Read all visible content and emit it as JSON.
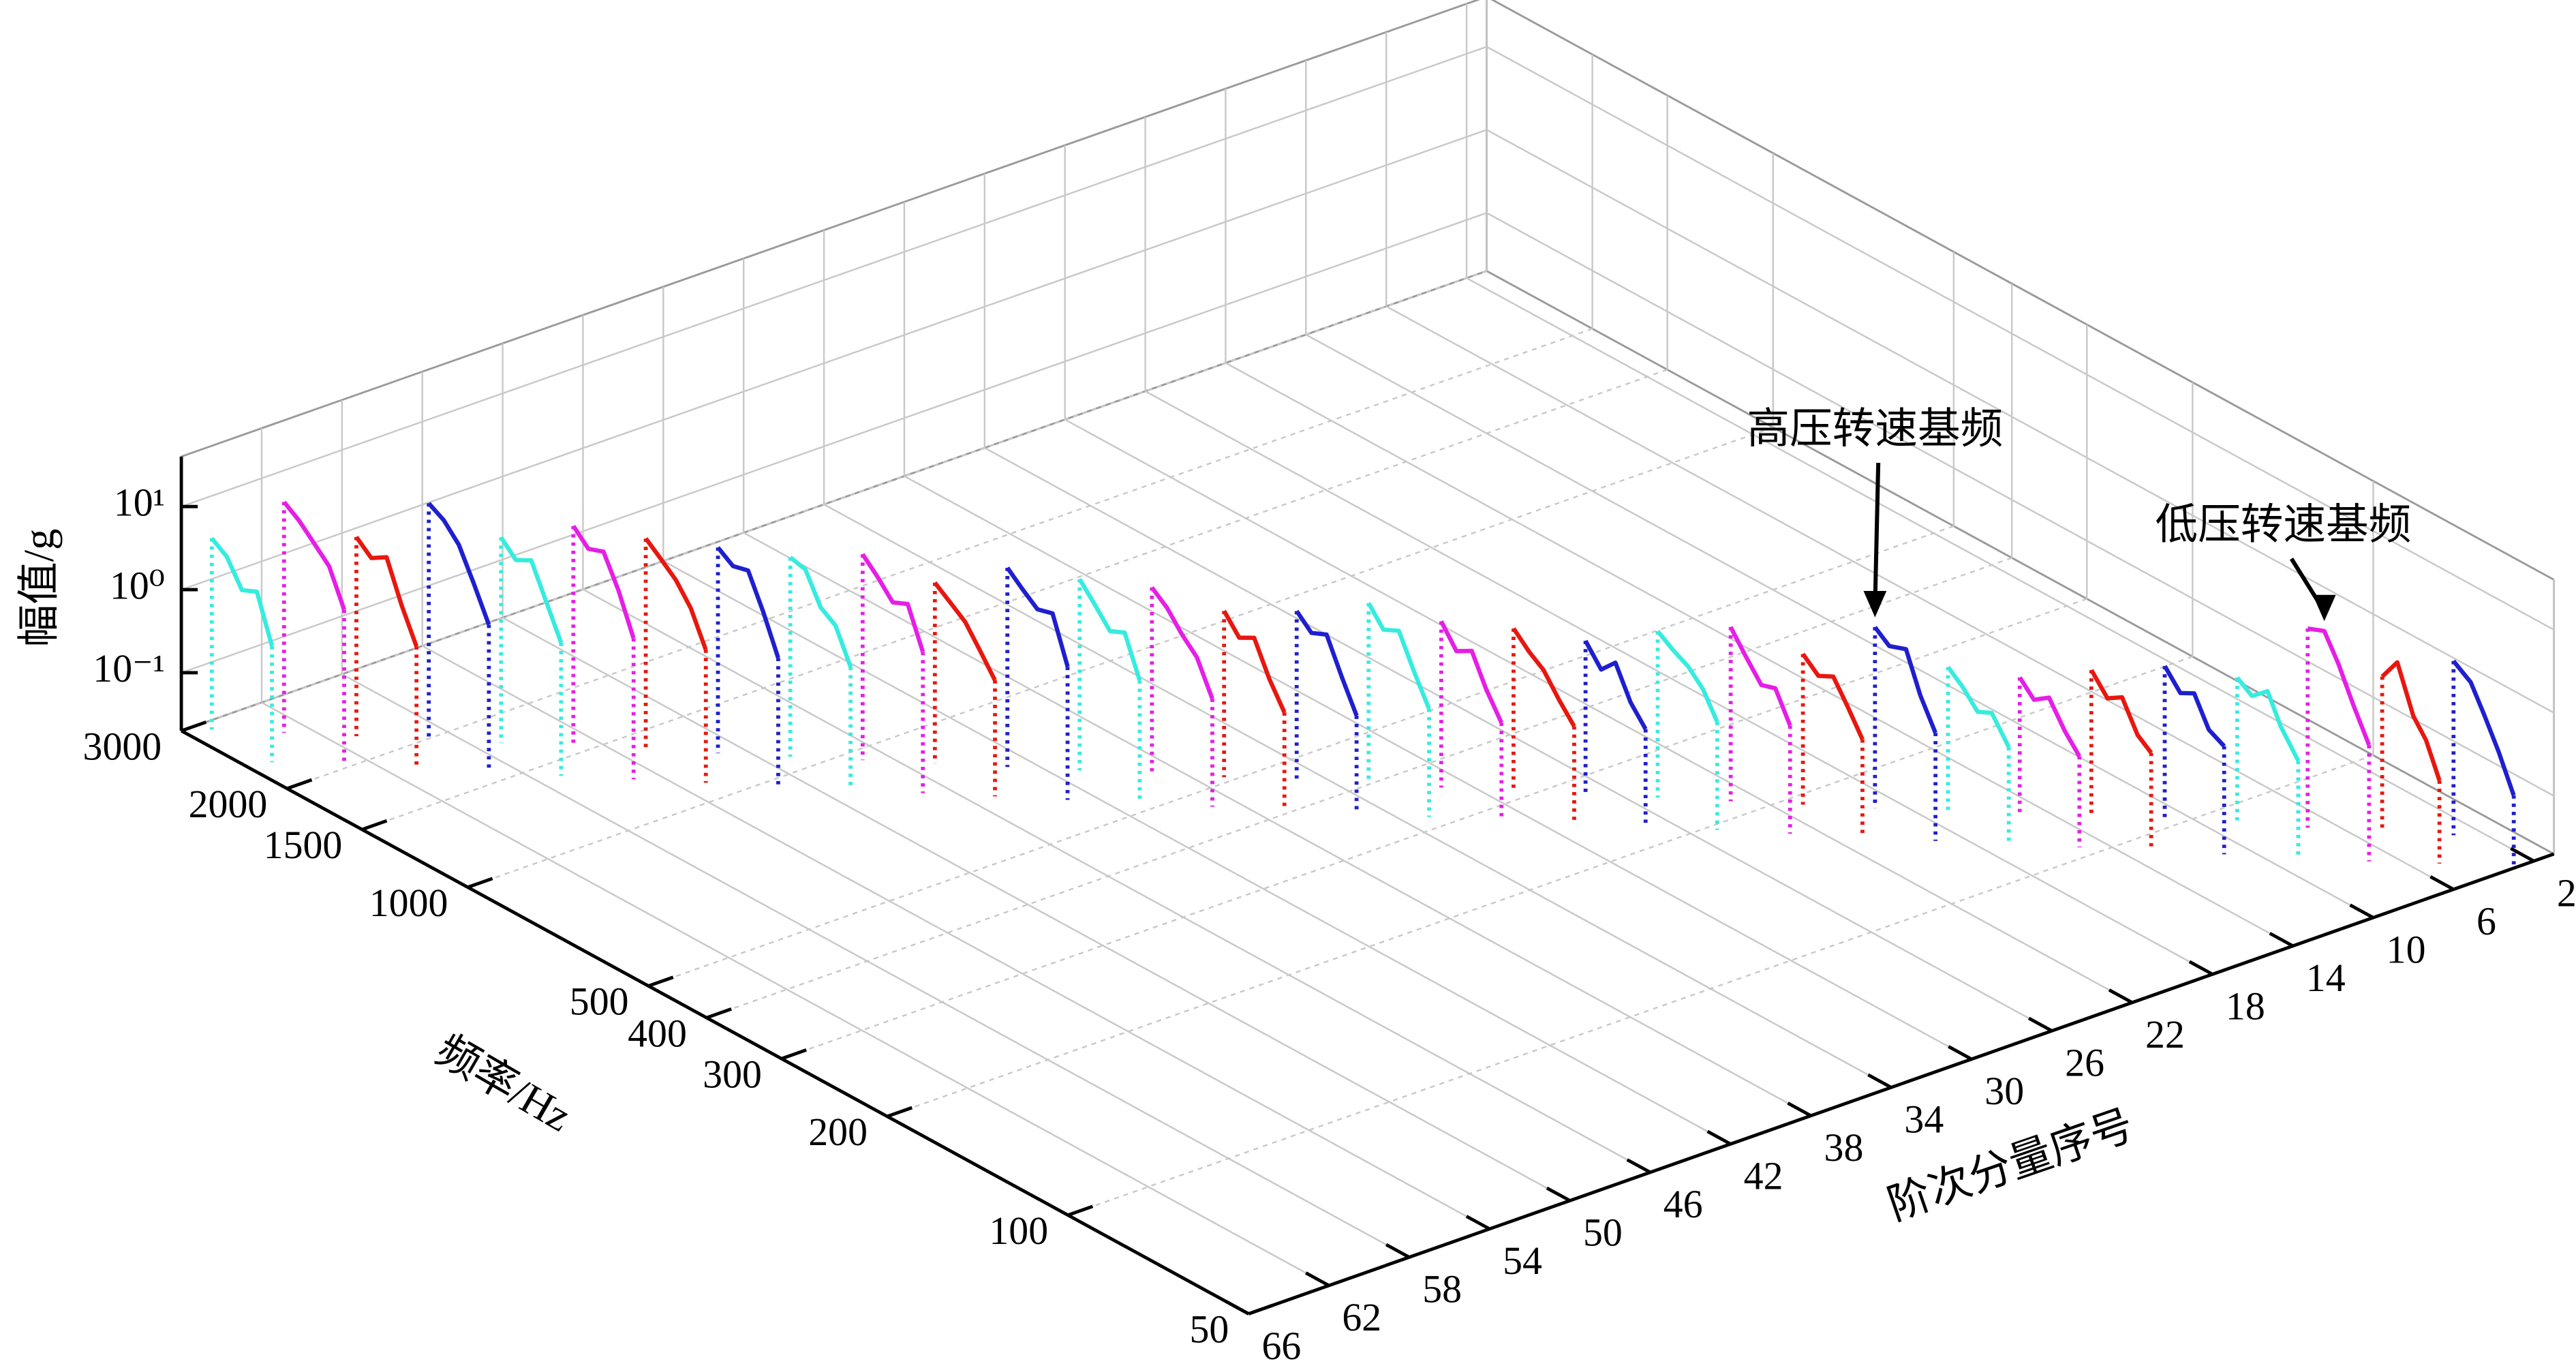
{
  "chart_data": {
    "type": "waterfall3d",
    "x_label": "阶次分量序号",
    "y_label": "频率/Hz",
    "z_label": "幅值/g",
    "xlim": [
      1,
      66
    ],
    "xticks": [
      2,
      6,
      10,
      14,
      18,
      22,
      26,
      30,
      34,
      38,
      42,
      46,
      50,
      54,
      58,
      62,
      66
    ],
    "ylim": [
      50,
      3000
    ],
    "yscale": "log",
    "yticks": [
      50,
      100,
      200,
      300,
      400,
      500,
      1000,
      1500,
      2000,
      3000
    ],
    "zlim": [
      0.02,
      40
    ],
    "zscale": "log",
    "zticks": [
      {
        "value": 0.1,
        "label": "10⁻¹"
      },
      {
        "value": 1,
        "label": "10⁰"
      },
      {
        "value": 10,
        "label": "10¹"
      }
    ],
    "grid": true,
    "annotations": [
      {
        "text": "高压转速基频"
      },
      {
        "text": "低压转速基频"
      }
    ],
    "series": [
      {
        "order": 3,
        "color": "#1f1fcf",
        "x": [
          63,
          59,
          56,
          53,
          50
        ],
        "values": [
          2.5,
          1.8,
          0.9,
          0.4,
          0.15
        ]
      },
      {
        "order": 5,
        "color": "#e8170f",
        "x": [
          71,
          67,
          63,
          60,
          57
        ],
        "values": [
          1.5,
          2.8,
          0.8,
          0.5,
          0.2
        ]
      },
      {
        "order": 7,
        "color": "#e61ee6",
        "x": [
          81,
          76,
          72,
          68,
          64
        ],
        "values": [
          5,
          6,
          3,
          1.2,
          0.5
        ]
      },
      {
        "order": 9,
        "color": "#35ecdf",
        "x": [
          91,
          86,
          81,
          77,
          72
        ],
        "values": [
          1.2,
          0.9,
          1.3,
          0.6,
          0.3
        ]
      },
      {
        "order": 11,
        "color": "#1f1fcf",
        "x": [
          103,
          97,
          92,
          87,
          82
        ],
        "values": [
          1.5,
          0.9,
          1.1,
          0.5,
          0.4
        ]
      },
      {
        "order": 13,
        "color": "#e8170f",
        "x": [
          117,
          110,
          104,
          98,
          93
        ],
        "values": [
          1.2,
          0.7,
          0.9,
          0.4,
          0.3
        ]
      },
      {
        "order": 15,
        "color": "#e61ee6",
        "x": [
          132,
          125,
          118,
          111,
          105
        ],
        "values": [
          0.9,
          0.6,
          0.8,
          0.4,
          0.25
        ]
      },
      {
        "order": 17,
        "color": "#35ecdf",
        "x": [
          149,
          141,
          133,
          126,
          118
        ],
        "values": [
          1.1,
          0.8,
          0.5,
          0.6,
          0.3
        ]
      },
      {
        "order": 19,
        "color": "#1f1fcf",
        "x": [
          169,
          160,
          150,
          142,
          134
        ],
        "values": [
          3,
          2.2,
          2.6,
          0.9,
          0.4
        ]
      },
      {
        "order": 21,
        "color": "#e8170f",
        "x": [
          191,
          180,
          170,
          161,
          152
        ],
        "values": [
          1.3,
          0.9,
          1.1,
          0.6,
          0.3
        ]
      },
      {
        "order": 23,
        "color": "#e61ee6",
        "x": [
          216,
          204,
          192,
          182,
          172
        ],
        "values": [
          2.5,
          1.4,
          0.8,
          0.9,
          0.4
        ]
      },
      {
        "order": 25,
        "color": "#35ecdf",
        "x": [
          245,
          231,
          218,
          206,
          195
        ],
        "values": [
          2,
          1.5,
          1.2,
          0.8,
          0.4
        ]
      },
      {
        "order": 27,
        "color": "#1f1fcf",
        "x": [
          277,
          261,
          247,
          233,
          220
        ],
        "values": [
          1.4,
          0.8,
          1.2,
          0.5,
          0.3
        ]
      },
      {
        "order": 29,
        "color": "#e8170f",
        "x": [
          313,
          295,
          279,
          263,
          248
        ],
        "values": [
          1.8,
          1.2,
          0.9,
          0.5,
          0.3
        ]
      },
      {
        "order": 31,
        "color": "#e61ee6",
        "x": [
          354,
          334,
          315,
          298,
          281
        ],
        "values": [
          2,
          1.1,
          1.4,
          0.6,
          0.3
        ]
      },
      {
        "order": 33,
        "color": "#35ecdf",
        "x": [
          401,
          379,
          357,
          337,
          318
        ],
        "values": [
          3,
          1.8,
          2.2,
          0.9,
          0.4
        ]
      },
      {
        "order": 35,
        "color": "#1f1fcf",
        "x": [
          453,
          428,
          404,
          381,
          360
        ],
        "values": [
          2.2,
          1.5,
          1.8,
          0.7,
          0.3
        ]
      },
      {
        "order": 37,
        "color": "#e8170f",
        "x": [
          513,
          484,
          457,
          431,
          407
        ],
        "values": [
          2,
          1.2,
          1.5,
          0.6,
          0.3
        ]
      },
      {
        "order": 39,
        "color": "#e61ee6",
        "x": [
          580,
          547,
          517,
          488,
          460
        ],
        "values": [
          3.5,
          2.5,
          1.5,
          1.0,
          0.4
        ]
      },
      {
        "order": 41,
        "color": "#35ecdf",
        "x": [
          656,
          619,
          584,
          552,
          521
        ],
        "values": [
          4,
          2.5,
          1.5,
          1.8,
          0.6
        ]
      },
      {
        "order": 43,
        "color": "#1f1fcf",
        "x": [
          742,
          701,
          661,
          624,
          589
        ],
        "values": [
          5,
          3.5,
          2.5,
          2.8,
          0.8
        ]
      },
      {
        "order": 45,
        "color": "#e8170f",
        "x": [
          840,
          793,
          748,
          706,
          667
        ],
        "values": [
          3,
          2.2,
          1.6,
          0.9,
          0.5
        ]
      },
      {
        "order": 47,
        "color": "#e61ee6",
        "x": [
          950,
          897,
          846,
          799,
          754
        ],
        "values": [
          6,
          4,
          2.5,
          3,
          1
        ]
      },
      {
        "order": 49,
        "color": "#35ecdf",
        "x": [
          1075,
          1014,
          957,
          904,
          853
        ],
        "values": [
          5,
          4.5,
          2,
          1.5,
          0.6
        ]
      },
      {
        "order": 51,
        "color": "#1f1fcf",
        "x": [
          1216,
          1148,
          1083,
          1022,
          965
        ],
        "values": [
          6,
          4.5,
          5,
          2,
          0.7
        ]
      },
      {
        "order": 53,
        "color": "#e8170f",
        "x": [
          1375,
          1298,
          1225,
          1157,
          1092
        ],
        "values": [
          7,
          5,
          3.5,
          2,
          0.8
        ]
      },
      {
        "order": 55,
        "color": "#e61ee6",
        "x": [
          1556,
          1469,
          1386,
          1309,
          1235
        ],
        "values": [
          9,
          6,
          7,
          3,
          1
        ]
      },
      {
        "order": 57,
        "color": "#35ecdf",
        "x": [
          1760,
          1662,
          1568,
          1480,
          1398
        ],
        "values": [
          6,
          4,
          5,
          2,
          0.8
        ]
      },
      {
        "order": 59,
        "color": "#1f1fcf",
        "x": [
          1991,
          1880,
          1774,
          1675,
          1581
        ],
        "values": [
          14,
          11,
          7,
          3,
          1.2
        ]
      },
      {
        "order": 61,
        "color": "#e8170f",
        "x": [
          2253,
          2127,
          2007,
          1895,
          1789
        ],
        "values": [
          5,
          3.5,
          4.5,
          1.5,
          0.6
        ]
      },
      {
        "order": 63,
        "color": "#e61ee6",
        "x": [
          2549,
          2406,
          2271,
          2144,
          2024
        ],
        "values": [
          12,
          9,
          6,
          4,
          1.5
        ]
      },
      {
        "order": 65,
        "color": "#35ecdf",
        "x": [
          2883,
          2722,
          2569,
          2425,
          2289
        ],
        "values": [
          4,
          3,
          1.5,
          1.8,
          0.5
        ]
      }
    ]
  }
}
